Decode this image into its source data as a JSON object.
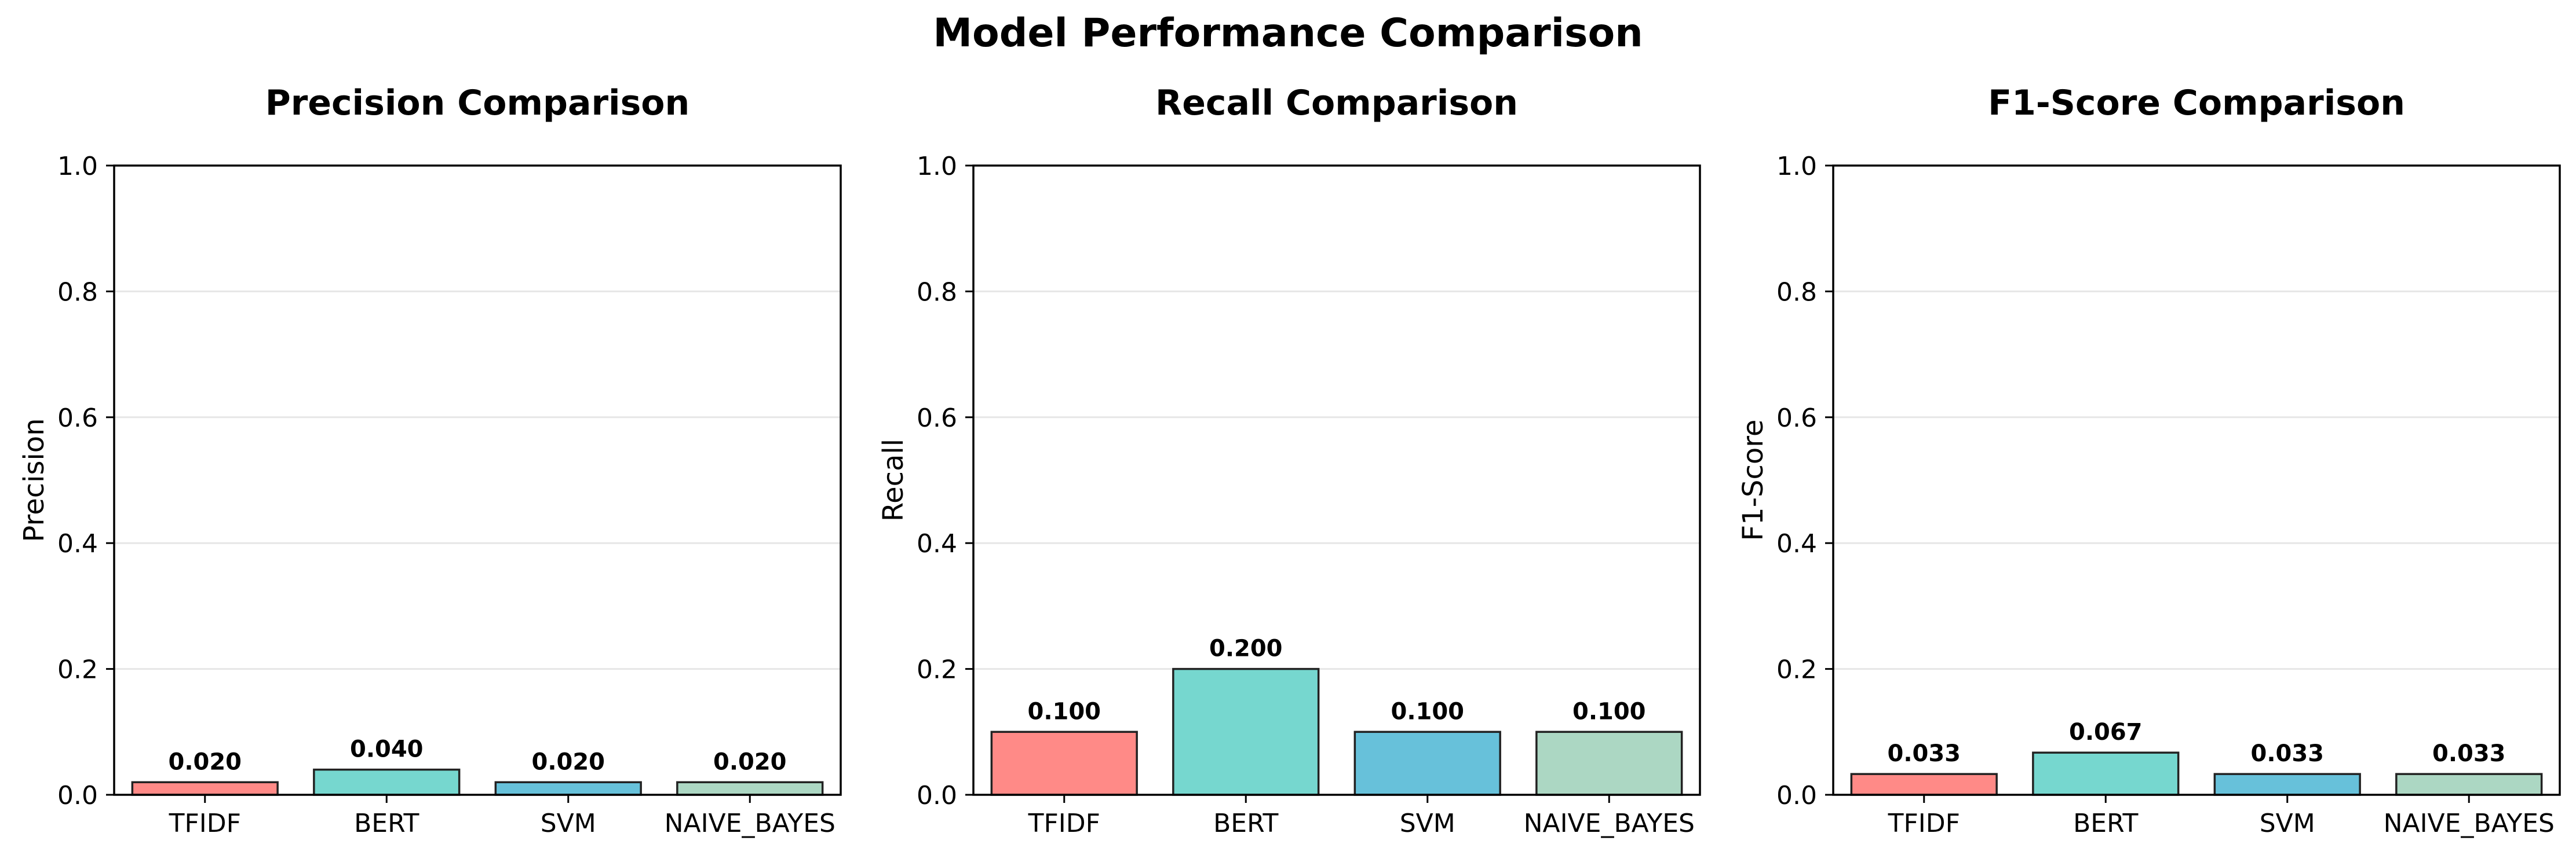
{
  "title": "Model Performance Comparison",
  "chart_data": [
    {
      "type": "bar",
      "title": "Precision Comparison",
      "xlabel": "",
      "ylabel": "Precision",
      "ylim": [
        0,
        1.0
      ],
      "yticks": [
        "0.0",
        "0.2",
        "0.4",
        "0.6",
        "0.8",
        "1.0"
      ],
      "grid": "y",
      "categories": [
        "TFIDF",
        "BERT",
        "SVM",
        "NAIVE_BAYES"
      ],
      "values": [
        0.02,
        0.04,
        0.02,
        0.02
      ],
      "value_labels": [
        "0.020",
        "0.040",
        "0.020",
        "0.020"
      ],
      "colors": [
        "#ff8a87",
        "#76d7cf",
        "#67c1da",
        "#acd7c3"
      ]
    },
    {
      "type": "bar",
      "title": "Recall Comparison",
      "xlabel": "",
      "ylabel": "Recall",
      "ylim": [
        0,
        1.0
      ],
      "yticks": [
        "0.0",
        "0.2",
        "0.4",
        "0.6",
        "0.8",
        "1.0"
      ],
      "grid": "y",
      "categories": [
        "TFIDF",
        "BERT",
        "SVM",
        "NAIVE_BAYES"
      ],
      "values": [
        0.1,
        0.2,
        0.1,
        0.1
      ],
      "value_labels": [
        "0.100",
        "0.200",
        "0.100",
        "0.100"
      ],
      "colors": [
        "#ff8a87",
        "#76d7cf",
        "#67c1da",
        "#acd7c3"
      ]
    },
    {
      "type": "bar",
      "title": "F1-Score Comparison",
      "xlabel": "",
      "ylabel": "F1-Score",
      "ylim": [
        0,
        1.0
      ],
      "yticks": [
        "0.0",
        "0.2",
        "0.4",
        "0.6",
        "0.8",
        "1.0"
      ],
      "grid": "y",
      "categories": [
        "TFIDF",
        "BERT",
        "SVM",
        "NAIVE_BAYES"
      ],
      "values": [
        0.033,
        0.067,
        0.033,
        0.033
      ],
      "value_labels": [
        "0.033",
        "0.067",
        "0.033",
        "0.033"
      ],
      "colors": [
        "#ff8a87",
        "#76d7cf",
        "#67c1da",
        "#acd7c3"
      ]
    }
  ]
}
